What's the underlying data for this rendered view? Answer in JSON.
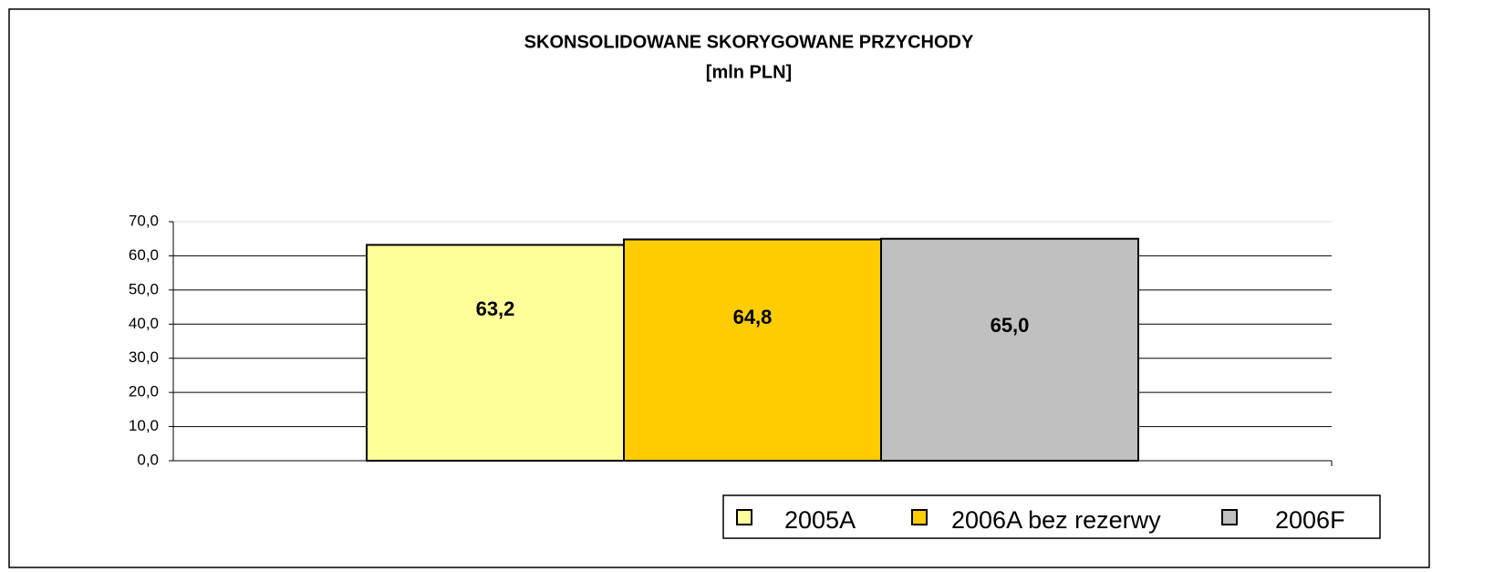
{
  "chart_data": {
    "type": "bar",
    "title": "SKONSOLIDOWANE SKORYGOWANE PRZYCHODY",
    "subtitle": "[mln PLN]",
    "categories": [
      null
    ],
    "series": [
      {
        "name": "2005A",
        "color": "#ffff99",
        "values": [
          63.2
        ],
        "value_labels": [
          "63,2"
        ]
      },
      {
        "name": "2006A bez rezerwy",
        "color": "#ffcc00",
        "values": [
          64.8
        ],
        "value_labels": [
          "64,8"
        ]
      },
      {
        "name": "2006F",
        "color": "#c0c0c0",
        "values": [
          65.0
        ],
        "value_labels": [
          "65,0"
        ]
      }
    ],
    "ylim": [
      0,
      70
    ],
    "yticks": [
      {
        "value": 0,
        "label": "0,0"
      },
      {
        "value": 10,
        "label": "10,0"
      },
      {
        "value": 20,
        "label": "20,0"
      },
      {
        "value": 30,
        "label": "30,0"
      },
      {
        "value": 40,
        "label": "40,0"
      },
      {
        "value": 50,
        "label": "50,0"
      },
      {
        "value": 60,
        "label": "60,0"
      },
      {
        "value": 70,
        "label": "70,0"
      }
    ],
    "grid": true,
    "legend": "bottom"
  }
}
